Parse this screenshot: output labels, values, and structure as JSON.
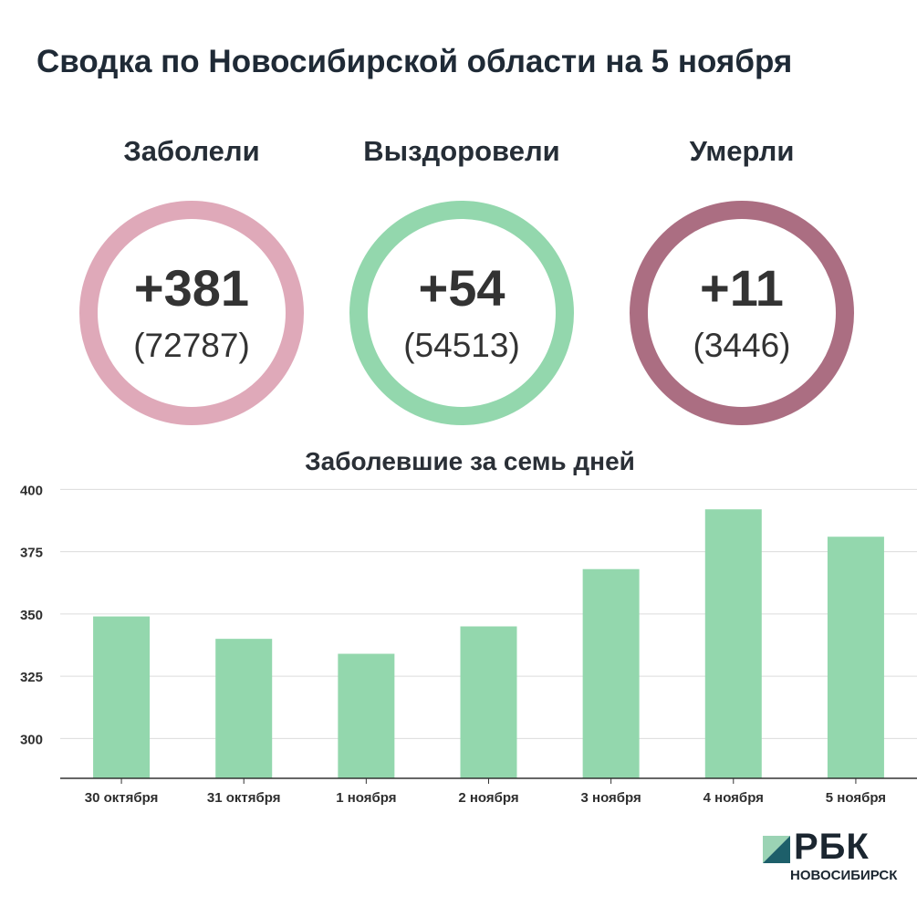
{
  "title": "Сводка по Новосибирской области на 5 ноября",
  "stats": [
    {
      "label": "Заболели",
      "delta": "+381",
      "total": "(72787)",
      "color": "#dfa9b9"
    },
    {
      "label": "Выздоровели",
      "delta": "+54",
      "total": "(54513)",
      "color": "#93d7ad"
    },
    {
      "label": "Умерли",
      "delta": "+11",
      "total": "(3446)",
      "color": "#ab6e82"
    }
  ],
  "chart_data": {
    "type": "bar",
    "title": "Заболевшие за семь дней",
    "xlabel": "",
    "ylabel": "",
    "categories": [
      "30 октября",
      "31 октября",
      "1 ноября",
      "2 ноября",
      "3 ноября",
      "4 ноября",
      "5 ноября"
    ],
    "values": [
      349,
      340,
      334,
      345,
      368,
      392,
      381
    ],
    "ylim": [
      284,
      406
    ],
    "yticks": [
      300,
      325,
      350,
      375,
      400
    ],
    "grid": true,
    "bar_color": "#93d7ad"
  },
  "logo": {
    "brand": "РБК",
    "region": "НОВОСИБИРСК",
    "colors": {
      "light": "#9bd3b4",
      "dark": "#1d5f6a"
    }
  }
}
